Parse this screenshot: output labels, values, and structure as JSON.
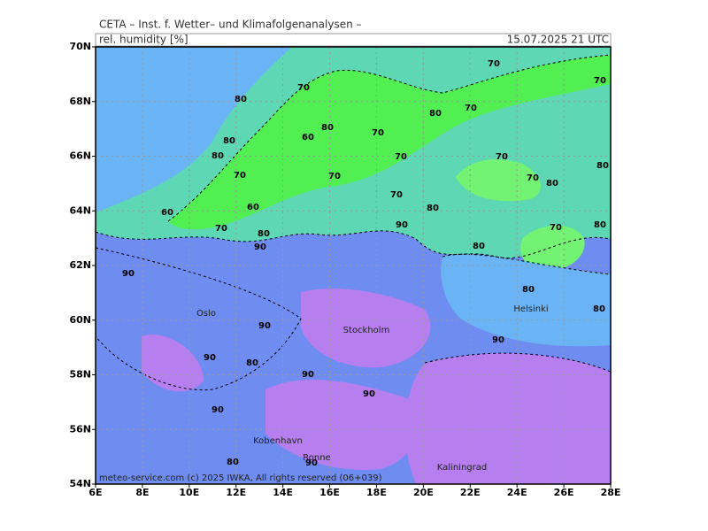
{
  "header": {
    "title": "CETA – Inst. f. Wetter– und Klimafolgenanalysen –",
    "variable": "rel. humidity [%]",
    "valid": "15.07.2025 21 UTC"
  },
  "axes": {
    "x_labels": [
      "6E",
      "8E",
      "10E",
      "12E",
      "14E",
      "16E",
      "18E",
      "20E",
      "22E",
      "24E",
      "26E",
      "28E"
    ],
    "y_labels": [
      "54N",
      "56N",
      "58N",
      "60N",
      "62N",
      "64N",
      "66N",
      "68N",
      "70N"
    ]
  },
  "cities": [
    "Oslo",
    "Stockholm",
    "Helsinki",
    "Kobenhavn",
    "Ronne",
    "Kaliningrad"
  ],
  "contour_labels": [
    70,
    70,
    70,
    70,
    70,
    70,
    70,
    70,
    70,
    70,
    70,
    70,
    70,
    80,
    80,
    80,
    80,
    80,
    80,
    80,
    80,
    80,
    80,
    80,
    80,
    80,
    80,
    80,
    60,
    60,
    60,
    90,
    90,
    90,
    90,
    90,
    90,
    90,
    90,
    90,
    90
  ],
  "footer": "meteo-service.com (c) 2025 IWKA, All rights reserved (06+039)"
}
